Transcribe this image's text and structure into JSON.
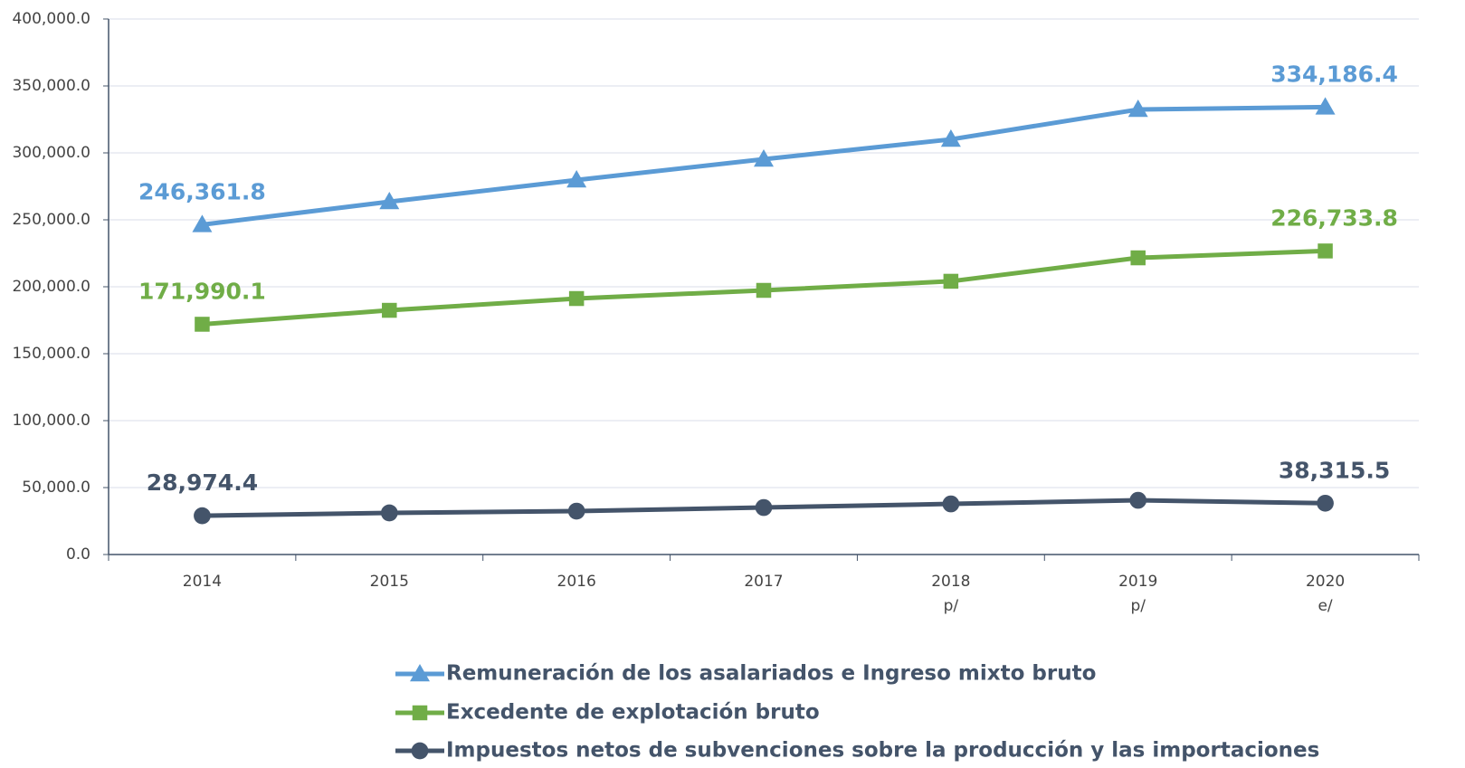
{
  "chart_data": {
    "type": "line",
    "categories": [
      "2014",
      "2015",
      "2016",
      "2017",
      "2018\np/",
      "2019\np/",
      "2020\ne/"
    ],
    "ylim": [
      0,
      400000
    ],
    "yticks": [
      {
        "value": 0,
        "label": "0.0"
      },
      {
        "value": 50000,
        "label": "50,000.0"
      },
      {
        "value": 100000,
        "label": "100,000.0"
      },
      {
        "value": 150000,
        "label": "150,000.0"
      },
      {
        "value": 200000,
        "label": "200,000.0"
      },
      {
        "value": 250000,
        "label": "250,000.0"
      },
      {
        "value": 300000,
        "label": "300,000.0"
      },
      {
        "value": 350000,
        "label": "350,000.0"
      },
      {
        "value": 400000,
        "label": "400,000.0"
      }
    ],
    "grid": true,
    "legend": "bottom",
    "series": [
      {
        "name": "Remuneración de los asalariados e Ingreso mixto bruto",
        "color": "#5b9bd5",
        "marker": "triangle",
        "values": [
          246361.8,
          263500,
          279700,
          295300,
          310100,
          332400,
          334186.4
        ],
        "value_labels": [
          "246,361.8",
          null,
          null,
          null,
          null,
          null,
          "334,186.4"
        ]
      },
      {
        "name": "Excedente de explotación bruto",
        "color": "#70ad47",
        "marker": "square",
        "values": [
          171990.1,
          182400,
          191200,
          197300,
          204100,
          221600,
          226733.8
        ],
        "value_labels": [
          "171,990.1",
          null,
          null,
          null,
          null,
          null,
          "226,733.8"
        ]
      },
      {
        "name": "Impuestos netos de subvenciones sobre la producción y las importaciones",
        "color": "#44546a",
        "marker": "circle",
        "values": [
          28974.4,
          31100,
          32400,
          35100,
          37800,
          40500,
          38315.5
        ],
        "value_labels": [
          "28,974.4",
          null,
          null,
          null,
          null,
          null,
          "38,315.5"
        ]
      }
    ]
  }
}
